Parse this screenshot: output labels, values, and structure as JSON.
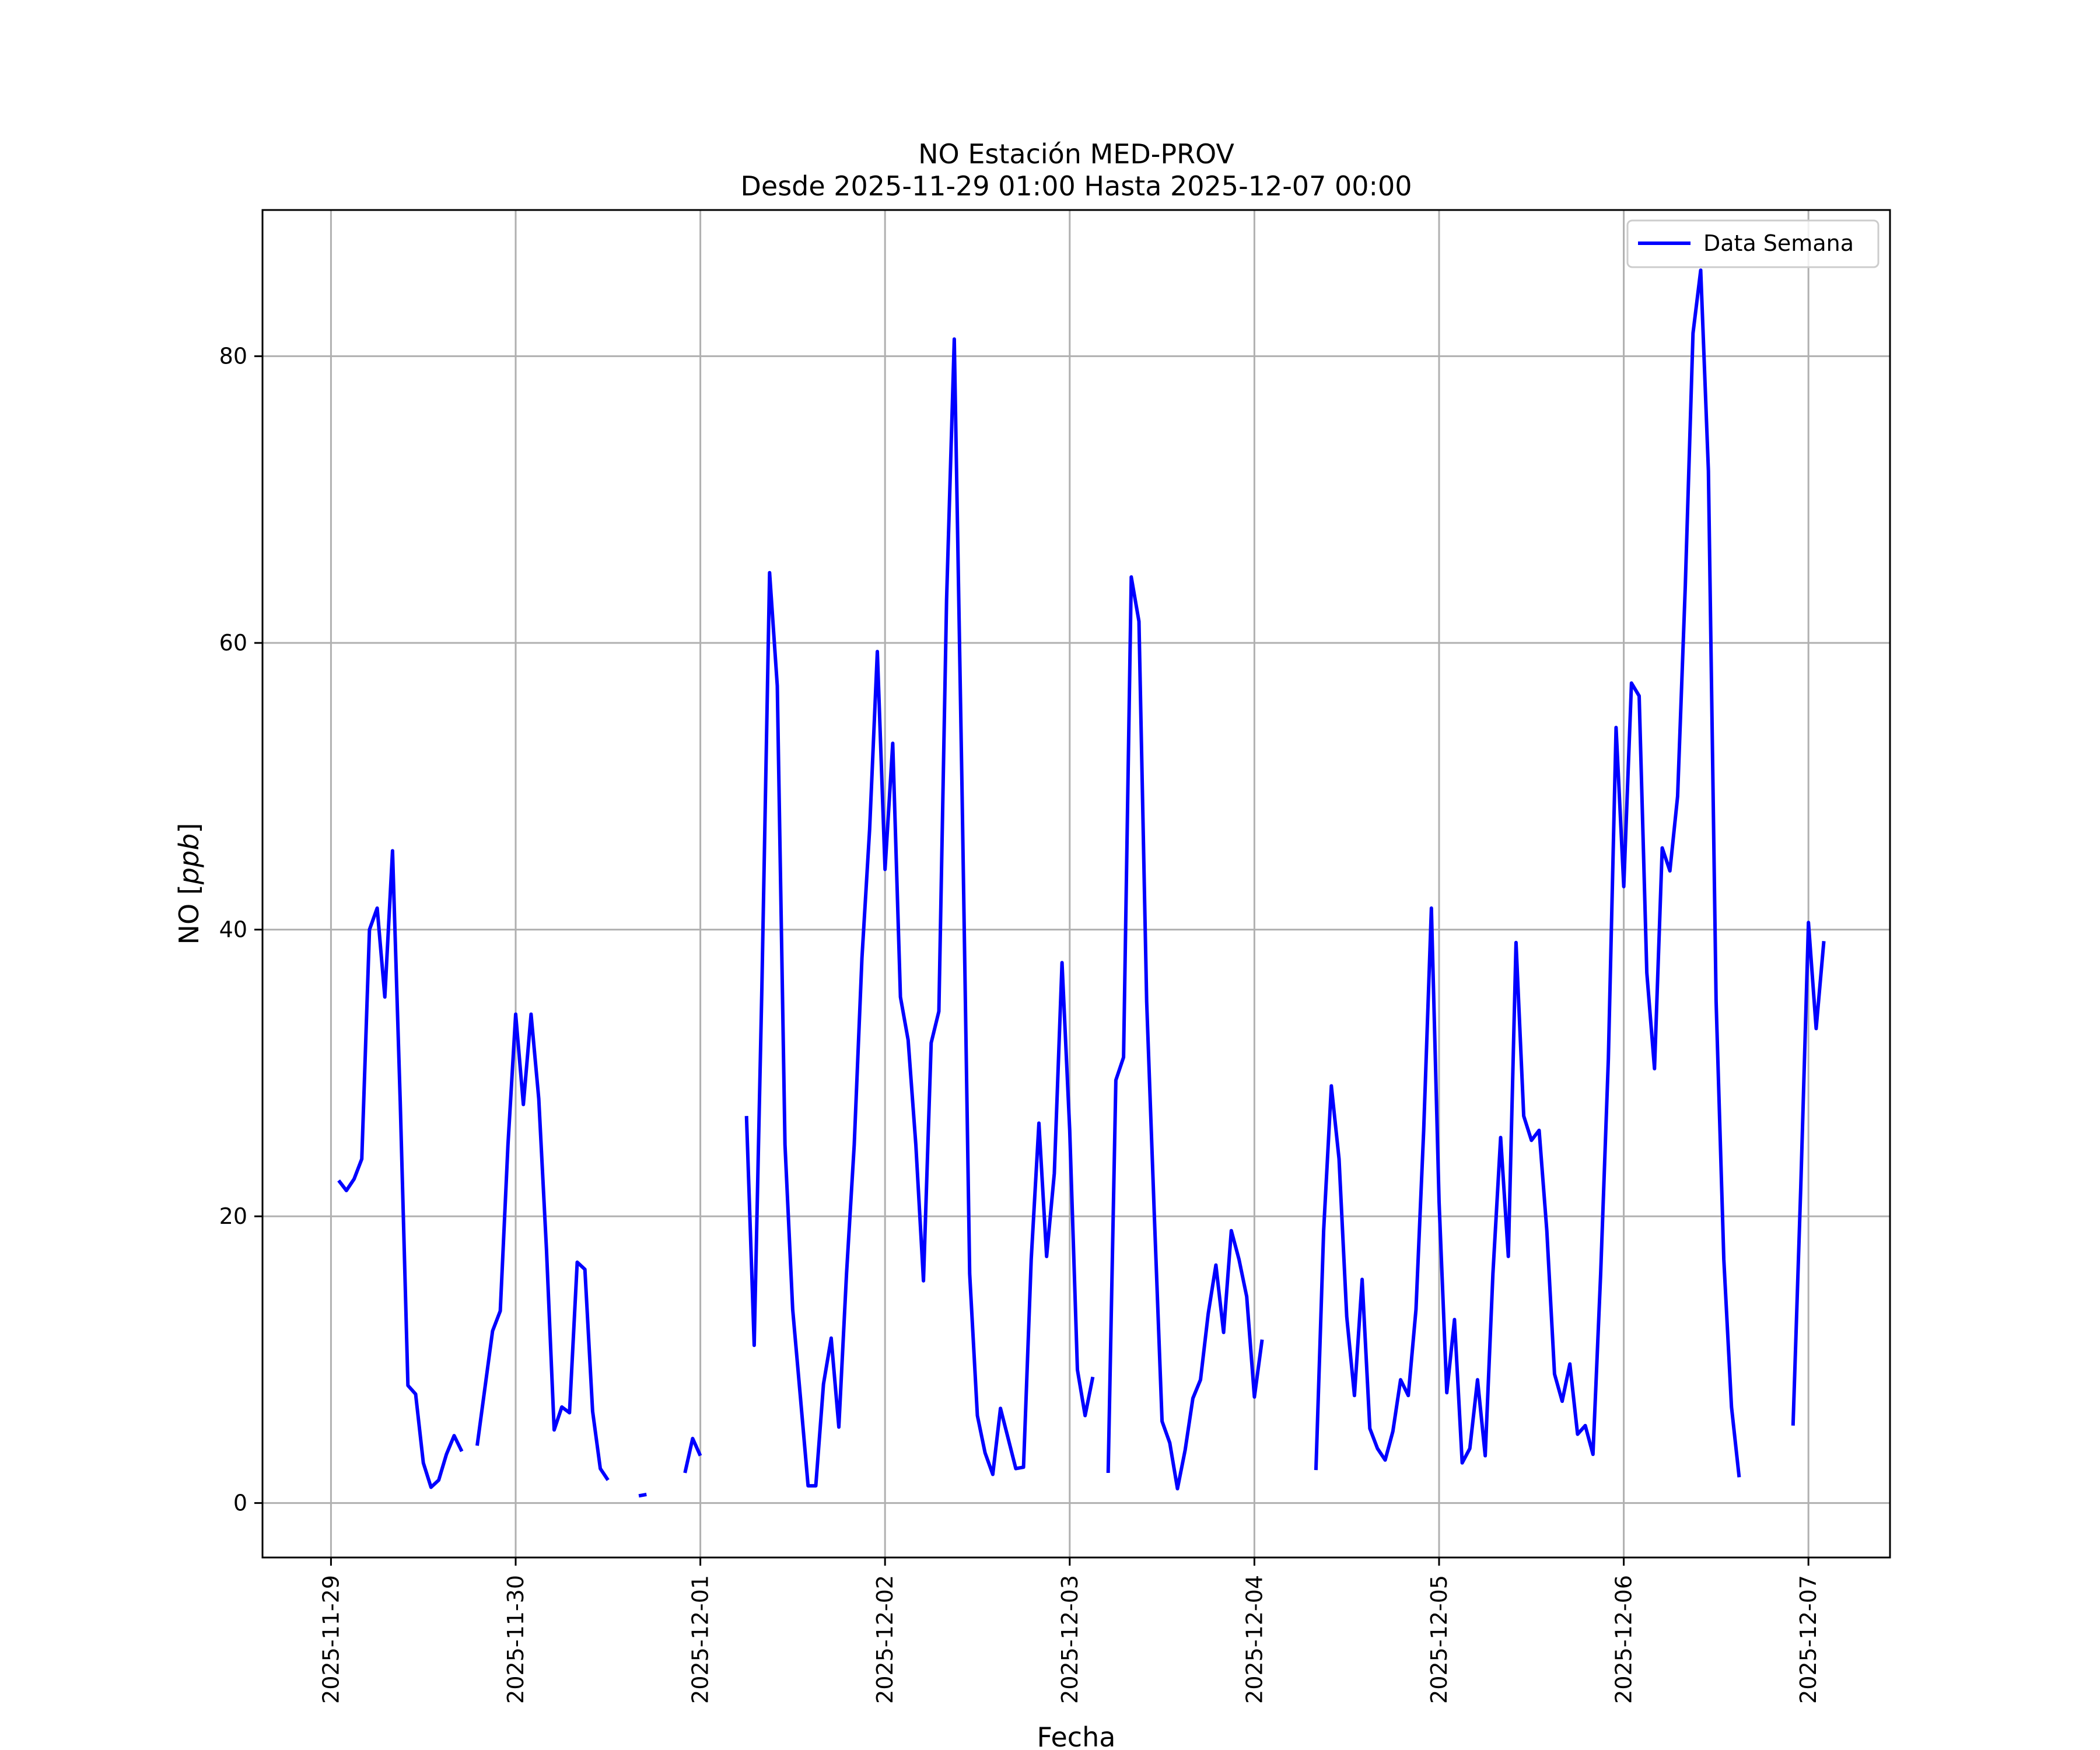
{
  "chart_data": {
    "type": "line",
    "title": "NO Estación MED-PROV",
    "subtitle": "Desde 2025-11-29 01:00 Hasta 2025-12-07 00:00",
    "xlabel": "Fecha",
    "ylabel_main": "NO [",
    "ylabel_unit": "ppb",
    "ylabel_close": "]",
    "xlim": [
      "2025-11-28 15:06",
      "2025-12-07 10:36"
    ],
    "ylim": [
      -3.8,
      90.2
    ],
    "x_ticks": [
      "2025-11-29",
      "2025-11-30",
      "2025-12-01",
      "2025-12-02",
      "2025-12-03",
      "2025-12-04",
      "2025-12-05",
      "2025-12-06",
      "2025-12-07"
    ],
    "y_ticks": [
      0,
      20,
      40,
      60,
      80
    ],
    "y_tick_labels": [
      "0",
      "20",
      "40",
      "60",
      "80"
    ],
    "grid": true,
    "legend": {
      "position": "top-right",
      "entries": [
        "Data Semana"
      ]
    },
    "series": [
      {
        "name": "Data Semana",
        "color": "#0000ff",
        "start": "2025-11-29 01:00",
        "step_hours": 1,
        "values": [
          22.5,
          21.8,
          22.6,
          24.0,
          40.0,
          41.5,
          35.3,
          45.5,
          28.0,
          8.2,
          7.6,
          2.8,
          1.1,
          1.6,
          3.4,
          4.7,
          3.6,
          null,
          4.0,
          8.0,
          12.0,
          13.4,
          25.0,
          34.1,
          27.8,
          34.1,
          28.2,
          17.7,
          5.1,
          6.7,
          6.3,
          16.8,
          16.3,
          6.4,
          2.4,
          1.6,
          null,
          null,
          null,
          0.5,
          0.6,
          null,
          null,
          null,
          null,
          2.1,
          4.5,
          3.3,
          null,
          null,
          null,
          null,
          null,
          27.0,
          11.0,
          36.0,
          64.9,
          57.0,
          25.0,
          13.5,
          7.4,
          1.2,
          1.2,
          8.3,
          11.5,
          5.3,
          16.0,
          25.0,
          38.0,
          47.0,
          59.4,
          44.2,
          53.0,
          35.3,
          32.3,
          25.0,
          15.5,
          32.1,
          34.3,
          63.0,
          81.2,
          50.0,
          16.0,
          6.1,
          3.5,
          2.0,
          6.6,
          4.5,
          2.4,
          2.5,
          17.0,
          26.5,
          17.2,
          23.0,
          37.7,
          26.0,
          9.3,
          6.1,
          8.8,
          null,
          2.1,
          29.5,
          31.1,
          64.6,
          61.5,
          35.0,
          20.0,
          5.7,
          4.2,
          1.0,
          3.7,
          7.3,
          8.6,
          13.2,
          16.6,
          11.9,
          19.0,
          17.0,
          14.4,
          7.4,
          11.4,
          null,
          null,
          null,
          null,
          null,
          null,
          2.3,
          19.0,
          29.1,
          24.0,
          13.0,
          7.5,
          15.6,
          5.2,
          3.8,
          3.0,
          5.0,
          8.6,
          7.5,
          13.5,
          26.0,
          41.5,
          21.0,
          7.7,
          12.8,
          2.8,
          3.8,
          8.6,
          3.3,
          16.0,
          25.5,
          17.2,
          39.1,
          27.0,
          25.3,
          26.0,
          19.0,
          9.0,
          7.1,
          9.7,
          4.8,
          5.4,
          3.4,
          16.0,
          31.0,
          54.1,
          43.0,
          57.2,
          56.3,
          37.0,
          30.3,
          45.7,
          44.1,
          49.3,
          64.0,
          81.6,
          86.0,
          72.0,
          35.0,
          17.0,
          6.7,
          1.8,
          null,
          null,
          null,
          null,
          null,
          null,
          5.4,
          22.0,
          40.5,
          33.1,
          39.2
        ]
      }
    ]
  }
}
